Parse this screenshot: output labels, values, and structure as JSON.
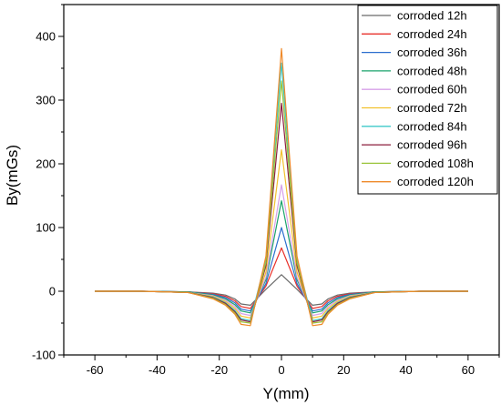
{
  "chart_data": {
    "type": "line",
    "title": "",
    "xlabel": "Y(mm)",
    "ylabel": "By(mGs)",
    "xlim": [
      -70,
      70
    ],
    "ylim": [
      -100,
      450
    ],
    "xticks": [
      -60,
      -40,
      -20,
      0,
      20,
      40,
      60
    ],
    "yticks": [
      -100,
      0,
      100,
      200,
      300,
      400
    ],
    "xtick_labels": [
      "-60",
      "-40",
      "-20",
      "0",
      "20",
      "40",
      "60"
    ],
    "ytick_labels": [
      "-100",
      "0",
      "100",
      "200",
      "300",
      "400"
    ],
    "grid": false,
    "legend_position": "top-right",
    "series": [
      {
        "name": "corroded 12h",
        "color": "#6b6b6b",
        "peak": 26,
        "dip": -25,
        "x": [
          -60,
          -45,
          -30,
          -22,
          -18,
          -15,
          -13,
          -10,
          -5,
          0,
          5,
          10,
          13,
          15,
          18,
          22,
          30,
          45,
          60
        ],
        "values": [
          0,
          0,
          -1,
          -3,
          -6,
          -12,
          -20,
          -22,
          3,
          26,
          3,
          -22,
          -20,
          -12,
          -6,
          -3,
          -1,
          0,
          0
        ]
      },
      {
        "name": "corroded 24h",
        "color": "#e8312b",
        "peak": 68,
        "dip": -30,
        "x": [
          -60,
          -45,
          -30,
          -22,
          -18,
          -15,
          -13,
          -10,
          -5,
          0,
          5,
          10,
          13,
          15,
          18,
          22,
          30,
          45,
          60
        ],
        "values": [
          0,
          0,
          -1,
          -4,
          -8,
          -15,
          -24,
          -27,
          8,
          68,
          8,
          -27,
          -24,
          -15,
          -8,
          -4,
          -1,
          0,
          0
        ]
      },
      {
        "name": "corroded 36h",
        "color": "#2c6fce",
        "peak": 100,
        "dip": -35,
        "x": [
          -60,
          -45,
          -30,
          -22,
          -18,
          -15,
          -13,
          -10,
          -5,
          0,
          5,
          10,
          13,
          15,
          18,
          22,
          30,
          45,
          60
        ],
        "values": [
          0,
          0,
          -1,
          -5,
          -10,
          -18,
          -28,
          -31,
          12,
          100,
          12,
          -31,
          -28,
          -18,
          -10,
          -5,
          -1,
          0,
          0
        ]
      },
      {
        "name": "corroded 48h",
        "color": "#1aa36b",
        "peak": 142,
        "dip": -38,
        "x": [
          -60,
          -45,
          -30,
          -22,
          -18,
          -15,
          -13,
          -10,
          -5,
          0,
          5,
          10,
          13,
          15,
          18,
          22,
          30,
          45,
          60
        ],
        "values": [
          0,
          0,
          -1,
          -6,
          -12,
          -21,
          -31,
          -34,
          18,
          142,
          18,
          -34,
          -31,
          -21,
          -12,
          -6,
          -1,
          0,
          0
        ]
      },
      {
        "name": "corroded 60h",
        "color": "#d7a0e8",
        "peak": 167,
        "dip": -42,
        "x": [
          -60,
          -45,
          -30,
          -22,
          -18,
          -15,
          -13,
          -10,
          -5,
          0,
          5,
          10,
          13,
          15,
          18,
          22,
          30,
          45,
          60
        ],
        "values": [
          0,
          0,
          -2,
          -7,
          -14,
          -24,
          -35,
          -38,
          22,
          167,
          22,
          -38,
          -35,
          -24,
          -14,
          -7,
          -2,
          0,
          0
        ]
      },
      {
        "name": "corroded 72h",
        "color": "#f2c12e",
        "peak": 222,
        "dip": -46,
        "x": [
          -60,
          -45,
          -30,
          -22,
          -18,
          -15,
          -13,
          -10,
          -5,
          0,
          5,
          10,
          13,
          15,
          18,
          22,
          30,
          45,
          60
        ],
        "values": [
          0,
          0,
          -2,
          -8,
          -16,
          -27,
          -39,
          -42,
          30,
          222,
          30,
          -42,
          -39,
          -27,
          -16,
          -8,
          -2,
          0,
          0
        ]
      },
      {
        "name": "corroded 84h",
        "color": "#3ec9c9",
        "peak": 358,
        "dip": -48,
        "x": [
          -60,
          -45,
          -30,
          -22,
          -18,
          -15,
          -13,
          -10,
          -5,
          0,
          5,
          10,
          13,
          15,
          18,
          22,
          30,
          45,
          60
        ],
        "values": [
          0,
          0,
          -2,
          -9,
          -18,
          -30,
          -43,
          -46,
          50,
          358,
          50,
          -46,
          -43,
          -30,
          -18,
          -9,
          -2,
          0,
          0
        ]
      },
      {
        "name": "corroded 96h",
        "color": "#8c1f3c",
        "peak": 295,
        "dip": -50,
        "x": [
          -60,
          -45,
          -30,
          -22,
          -18,
          -15,
          -13,
          -10,
          -5,
          0,
          5,
          10,
          13,
          15,
          18,
          22,
          30,
          45,
          60
        ],
        "values": [
          0,
          0,
          -2,
          -10,
          -19,
          -32,
          -45,
          -48,
          40,
          295,
          40,
          -48,
          -45,
          -32,
          -19,
          -10,
          -2,
          0,
          0
        ]
      },
      {
        "name": "corroded 108h",
        "color": "#9ac43a",
        "peak": 330,
        "dip": -52,
        "x": [
          -60,
          -45,
          -30,
          -22,
          -18,
          -15,
          -13,
          -10,
          -5,
          0,
          5,
          10,
          13,
          15,
          18,
          22,
          30,
          45,
          60
        ],
        "values": [
          0,
          0,
          -2,
          -11,
          -21,
          -34,
          -48,
          -50,
          45,
          330,
          45,
          -50,
          -48,
          -34,
          -21,
          -11,
          -2,
          0,
          0
        ]
      },
      {
        "name": "corroded 120h",
        "color": "#ef8a2a",
        "peak": 381,
        "dip": -55,
        "x": [
          -60,
          -45,
          -30,
          -22,
          -18,
          -15,
          -13,
          -10,
          -5,
          0,
          5,
          10,
          13,
          15,
          18,
          22,
          30,
          45,
          60
        ],
        "values": [
          0,
          0,
          -2,
          -12,
          -22,
          -36,
          -52,
          -54,
          55,
          381,
          55,
          -54,
          -52,
          -36,
          -22,
          -12,
          -2,
          0,
          0
        ]
      }
    ]
  }
}
